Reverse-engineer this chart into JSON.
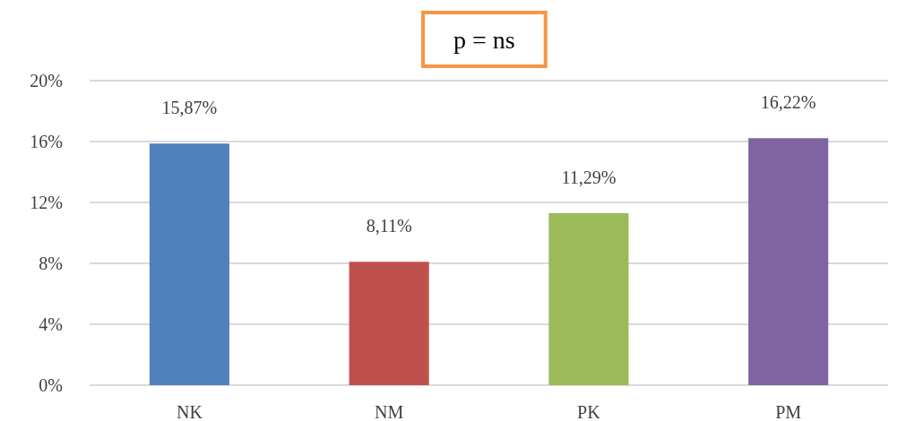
{
  "chart_data": {
    "type": "bar",
    "categories": [
      "NK",
      "NM",
      "PK",
      "PM"
    ],
    "values": [
      15.87,
      8.11,
      11.29,
      16.22
    ],
    "value_labels": [
      "15,87%",
      "8,11%",
      "11,29%",
      "16,22%"
    ],
    "colors": [
      "#4f81bd",
      "#c0504d",
      "#9bbb59",
      "#8064a2"
    ],
    "ylim": [
      0,
      20
    ],
    "yticks": [
      {
        "value": 0,
        "label": "0%"
      },
      {
        "value": 4,
        "label": "4%"
      },
      {
        "value": 8,
        "label": "8%"
      },
      {
        "value": 12,
        "label": "12%"
      },
      {
        "value": 16,
        "label": "16%"
      },
      {
        "value": 20,
        "label": "20%"
      }
    ],
    "grid": true,
    "annotations": [
      "p = ns"
    ]
  }
}
